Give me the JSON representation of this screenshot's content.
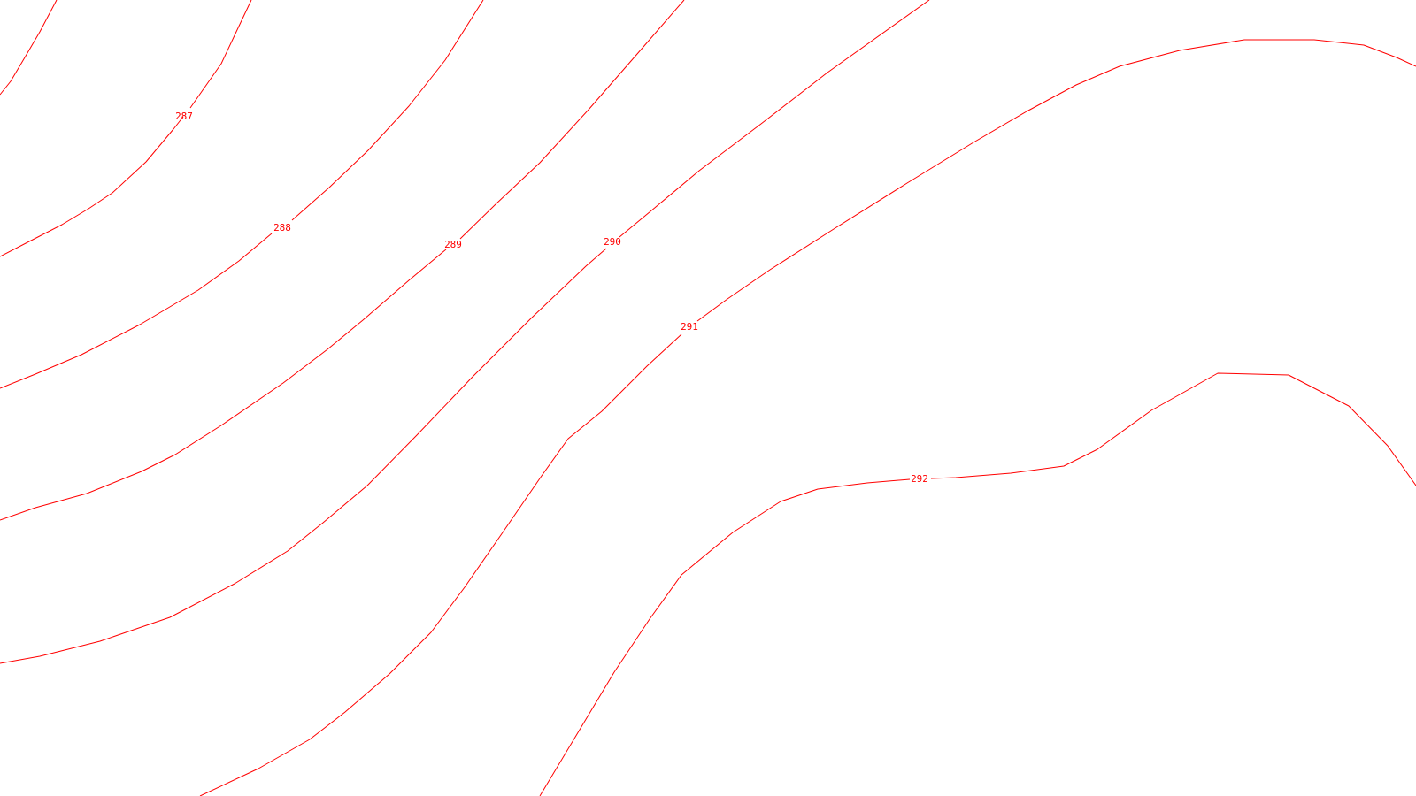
{
  "map": {
    "line_color": "#ff0000",
    "label_color": "#ff0000",
    "background": "#ffffff",
    "contours": [
      {
        "elevation": "287"
      },
      {
        "elevation": "288"
      },
      {
        "elevation": "289"
      },
      {
        "elevation": "290"
      },
      {
        "elevation": "291"
      },
      {
        "elevation": "292"
      }
    ]
  }
}
